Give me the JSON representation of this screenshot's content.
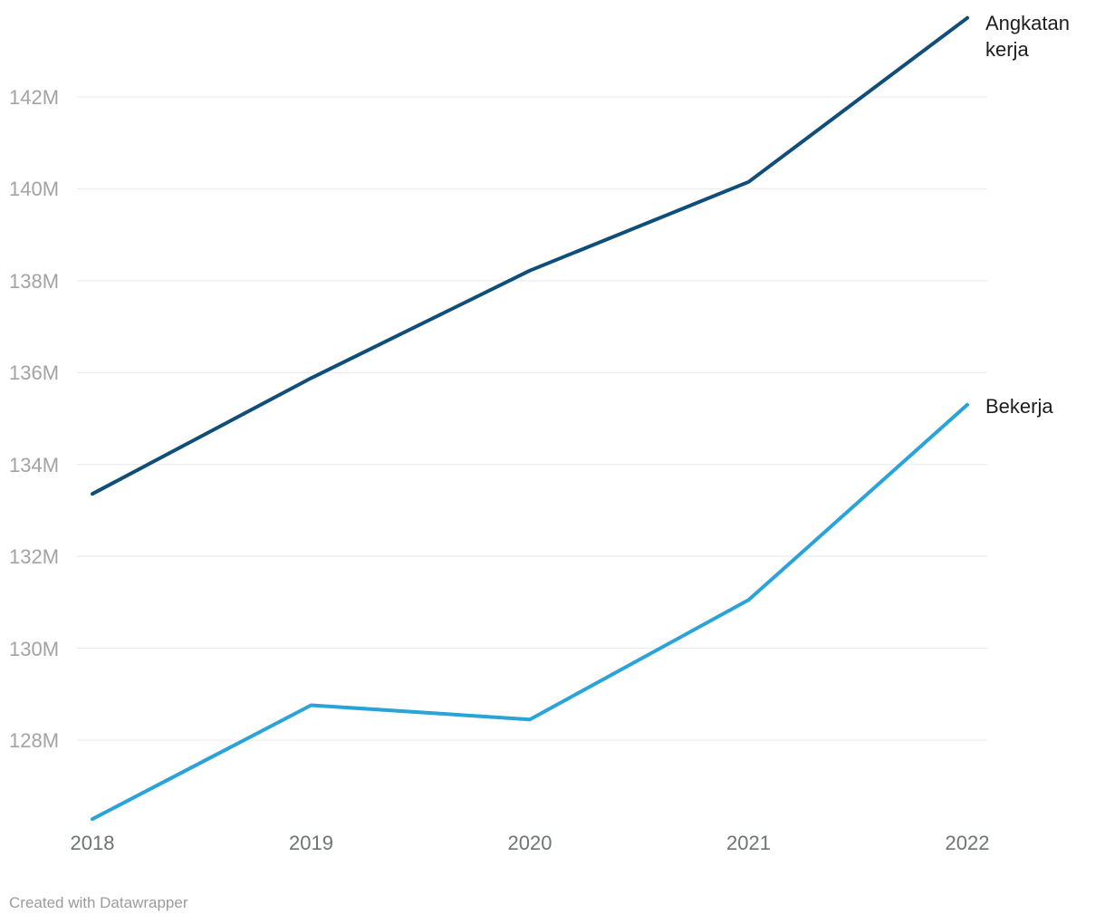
{
  "chart_data": {
    "type": "line",
    "x": [
      "2018",
      "2019",
      "2020",
      "2021",
      "2022"
    ],
    "series": [
      {
        "name": "Angkatan kerja",
        "color": "#0f4e78",
        "values": [
          133.36,
          135.88,
          138.22,
          140.15,
          143.72
        ]
      },
      {
        "name": "Bekerja",
        "color": "#29a3d8",
        "values": [
          126.28,
          128.76,
          128.45,
          131.05,
          135.3
        ]
      }
    ],
    "title": "",
    "xlabel": "",
    "ylabel": "",
    "ylim": [
      125.9,
      143.9
    ],
    "yticks": [
      128,
      130,
      132,
      134,
      136,
      138,
      140,
      142
    ],
    "ytick_labels": [
      "128M",
      "130M",
      "132M",
      "134M",
      "136M",
      "138M",
      "140M",
      "142M"
    ],
    "grid": "horizontal",
    "gridline_color": "#e8e8e8",
    "legend_position": "direct-labels-right",
    "line_width": 4
  },
  "footer": {
    "credit": "Created with Datawrapper"
  }
}
